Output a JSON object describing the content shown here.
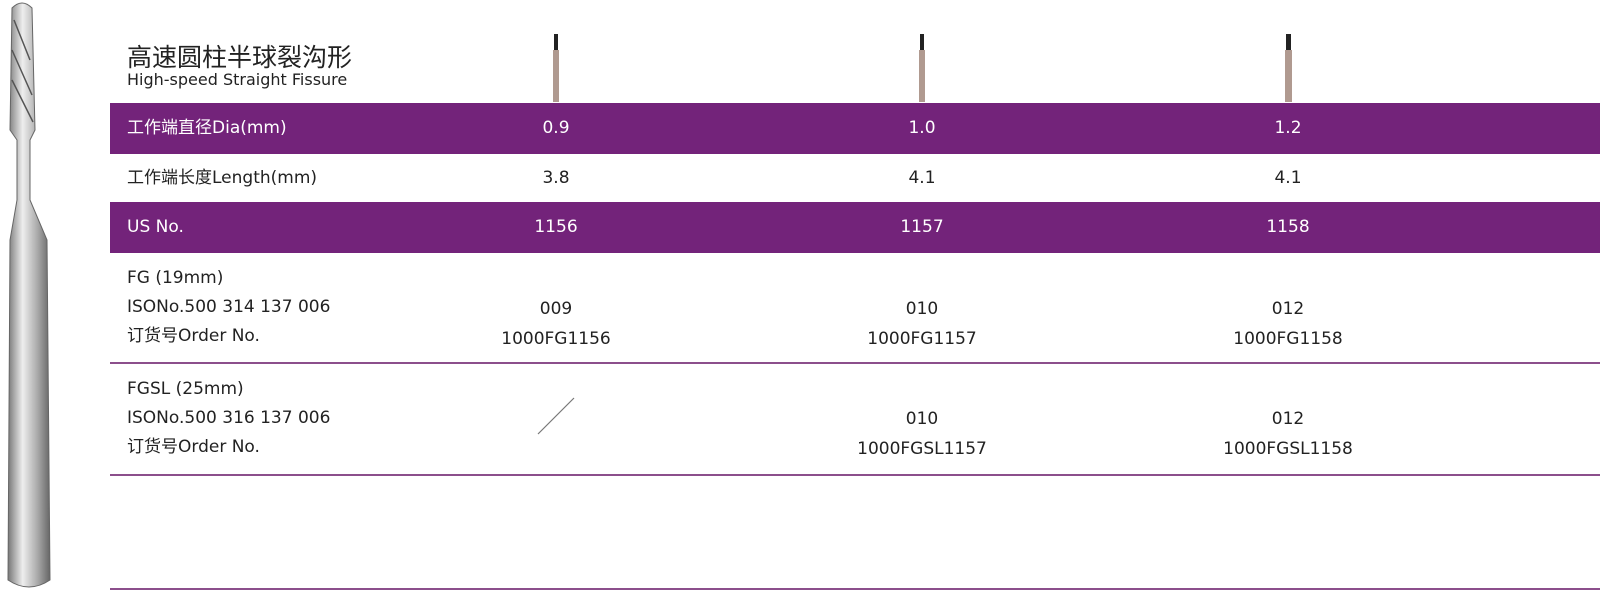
{
  "header": {
    "title": "高速圆柱半球裂沟形",
    "subtitle": "High-speed Straight Fissure"
  },
  "table": {
    "rows": [
      {
        "label": [
          "工作端直径Dia(mm)"
        ],
        "cells": [
          [
            "0.9"
          ],
          [
            "1.0"
          ],
          [
            "1.2"
          ]
        ],
        "style": "band"
      },
      {
        "label": [
          "工作端长度Length(mm)"
        ],
        "cells": [
          [
            "3.8"
          ],
          [
            "4.1"
          ],
          [
            "4.1"
          ]
        ],
        "style": "plain"
      },
      {
        "label": [
          "US No."
        ],
        "cells": [
          [
            "1156"
          ],
          [
            "1157"
          ],
          [
            "1158"
          ]
        ],
        "style": "band"
      },
      {
        "label": [
          "FG (19mm)",
          "ISONo.500 314 137 006",
          "订货号Order No."
        ],
        "cells": [
          [
            "009",
            "1000FG1156"
          ],
          [
            "010",
            "1000FG1157"
          ],
          [
            "012",
            "1000FG1158"
          ]
        ],
        "style": "plain"
      },
      {
        "label": [
          "FGSL (25mm)",
          "ISONo.500 316 137 006",
          "订货号Order No."
        ],
        "cells": [
          null,
          [
            "010",
            "1000FGSL1157"
          ],
          [
            "012",
            "1000FGSL1158"
          ]
        ],
        "style": "plain"
      }
    ]
  }
}
